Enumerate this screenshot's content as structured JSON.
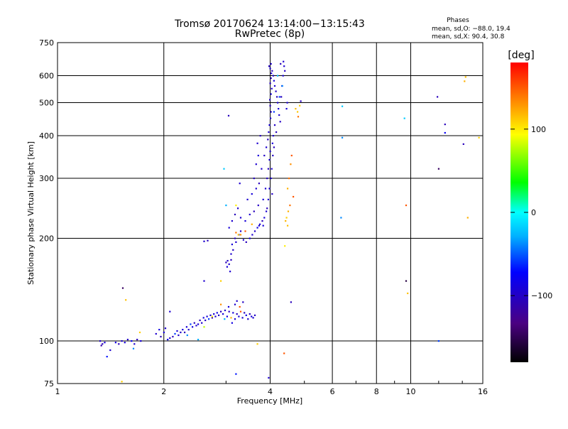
{
  "chart_data": {
    "type": "scatter",
    "title": "Tromsø 20170624 13:14:00−13:15:43",
    "subtitle": "RwPretec (8p)",
    "annotation": {
      "heading": "Phases",
      "line1": "mean, sd,O: −88.0, 19.4",
      "line2": "mean, sd,X:  90.4, 30.8"
    },
    "xlabel": "Frequency [MHz]",
    "ylabel": "Stationary phase Virtual Height [km]",
    "x_scale": "log",
    "y_scale": "log",
    "xlim": [
      1,
      16
    ],
    "ylim": [
      75,
      750
    ],
    "x_ticks": [
      {
        "value": 1,
        "label": "1"
      },
      {
        "value": 2,
        "label": "2"
      },
      {
        "value": 4,
        "label": "4"
      },
      {
        "value": 6,
        "label": "6"
      },
      {
        "value": 8,
        "label": "8"
      },
      {
        "value": 10,
        "label": "10"
      },
      {
        "value": 16,
        "label": "16"
      }
    ],
    "y_ticks": [
      {
        "value": 75,
        "label": "75"
      },
      {
        "value": 100,
        "label": "100"
      },
      {
        "value": 200,
        "label": "200"
      },
      {
        "value": 300,
        "label": "300"
      },
      {
        "value": 400,
        "label": "400"
      },
      {
        "value": 500,
        "label": "500"
      },
      {
        "value": 600,
        "label": "600"
      },
      {
        "value": 750,
        "label": "750"
      }
    ],
    "grid": true,
    "colorbar": {
      "unit": "[deg]",
      "range": [
        -180,
        180
      ],
      "ticks": [
        {
          "value": 100,
          "label": "100"
        },
        {
          "value": 0,
          "label": "0"
        },
        {
          "value": -100,
          "label": "−100"
        }
      ]
    },
    "points": [
      [
        1.32,
        100,
        -100
      ],
      [
        1.34,
        98,
        -110
      ],
      [
        1.36,
        99,
        -95
      ],
      [
        1.33,
        97,
        -120
      ],
      [
        1.41,
        94,
        -100
      ],
      [
        1.46,
        99,
        -90
      ],
      [
        1.49,
        98,
        -110
      ],
      [
        1.52,
        100,
        -100
      ],
      [
        1.55,
        99,
        -95
      ],
      [
        1.58,
        101,
        -105
      ],
      [
        1.62,
        100,
        -80
      ],
      [
        1.65,
        98,
        -100
      ],
      [
        1.68,
        101,
        -110
      ],
      [
        1.72,
        100,
        -95
      ],
      [
        1.38,
        90,
        -70
      ],
      [
        1.52,
        76,
        110
      ],
      [
        1.56,
        132,
        115
      ],
      [
        1.53,
        143,
        -150
      ],
      [
        1.71,
        106,
        110
      ],
      [
        1.64,
        95,
        -40
      ],
      [
        1.9,
        105,
        -100
      ],
      [
        1.94,
        108,
        -90
      ],
      [
        1.96,
        103,
        -110
      ],
      [
        2.0,
        106,
        -95
      ],
      [
        2.02,
        109,
        -100
      ],
      [
        2.05,
        101,
        -80
      ],
      [
        2.08,
        102,
        -105
      ],
      [
        2.12,
        103,
        -110
      ],
      [
        2.15,
        105,
        -60
      ],
      [
        2.18,
        107,
        -95
      ],
      [
        2.2,
        104,
        -100
      ],
      [
        2.23,
        106,
        -105
      ],
      [
        2.26,
        108,
        -90
      ],
      [
        2.29,
        106,
        -110
      ],
      [
        2.32,
        110,
        -95
      ],
      [
        2.35,
        108,
        -100
      ],
      [
        2.38,
        112,
        -60
      ],
      [
        2.41,
        110,
        -90
      ],
      [
        2.44,
        113,
        -105
      ],
      [
        2.47,
        111,
        -100
      ],
      [
        2.5,
        112,
        -95
      ],
      [
        2.53,
        115,
        -110
      ],
      [
        2.56,
        113,
        -100
      ],
      [
        2.59,
        117,
        -90
      ],
      [
        2.62,
        115,
        -105
      ],
      [
        2.65,
        118,
        -95
      ],
      [
        2.68,
        116,
        -60
      ],
      [
        2.71,
        119,
        -100
      ],
      [
        2.74,
        117,
        -110
      ],
      [
        2.77,
        120,
        -95
      ],
      [
        2.8,
        118,
        -100
      ],
      [
        2.83,
        121,
        -90
      ],
      [
        2.86,
        119,
        -105
      ],
      [
        2.9,
        122,
        -110
      ],
      [
        2.94,
        120,
        -95
      ],
      [
        2.98,
        123,
        -100
      ],
      [
        3.02,
        118,
        -90
      ],
      [
        3.06,
        122,
        -105
      ],
      [
        3.1,
        117,
        120
      ],
      [
        3.14,
        121,
        -95
      ],
      [
        3.18,
        116,
        -100
      ],
      [
        3.22,
        120,
        -110
      ],
      [
        3.26,
        118,
        -95
      ],
      [
        3.3,
        122,
        150
      ],
      [
        3.34,
        117,
        -100
      ],
      [
        3.38,
        121,
        -105
      ],
      [
        3.42,
        119,
        -90
      ],
      [
        3.46,
        116,
        -100
      ],
      [
        3.5,
        120,
        -110
      ],
      [
        3.54,
        118,
        -95
      ],
      [
        3.58,
        117,
        -100
      ],
      [
        3.62,
        119,
        -105
      ],
      [
        2.08,
        122,
        -100
      ],
      [
        2.6,
        110,
        80
      ],
      [
        2.33,
        104,
        -40
      ],
      [
        2.97,
        116,
        -30
      ],
      [
        3.18,
        128,
        -100
      ],
      [
        3.05,
        126,
        -95
      ],
      [
        2.9,
        128,
        130
      ],
      [
        2.74,
        118,
        100
      ],
      [
        3.22,
        131,
        -100
      ],
      [
        3.35,
        130,
        -105
      ],
      [
        3.28,
        126,
        150
      ],
      [
        3.12,
        113,
        -90
      ],
      [
        2.5,
        101,
        -30
      ],
      [
        2.6,
        196,
        -100
      ],
      [
        2.66,
        197,
        -110
      ],
      [
        2.6,
        150,
        -100
      ],
      [
        2.9,
        150,
        110
      ],
      [
        3.0,
        170,
        -110
      ],
      [
        3.03,
        172,
        -105
      ],
      [
        3.06,
        168,
        -100
      ],
      [
        3.1,
        173,
        -110
      ],
      [
        3.02,
        165,
        -95
      ],
      [
        3.08,
        160,
        -100
      ],
      [
        3.1,
        180,
        -100
      ],
      [
        3.14,
        185,
        -105
      ],
      [
        3.12,
        192,
        -95
      ],
      [
        3.2,
        195,
        -100
      ],
      [
        3.18,
        200,
        -110
      ],
      [
        3.26,
        205,
        -90
      ],
      [
        3.3,
        210,
        -105
      ],
      [
        3.36,
        198,
        -100
      ],
      [
        3.42,
        195,
        -110
      ],
      [
        3.5,
        200,
        -95
      ],
      [
        3.56,
        205,
        -100
      ],
      [
        3.62,
        210,
        -105
      ],
      [
        3.68,
        215,
        -90
      ],
      [
        3.74,
        220,
        -100
      ],
      [
        3.8,
        225,
        -110
      ],
      [
        3.85,
        230,
        -95
      ],
      [
        3.9,
        240,
        -100
      ],
      [
        3.06,
        215,
        -95
      ],
      [
        3.12,
        225,
        -100
      ],
      [
        3.18,
        235,
        -110
      ],
      [
        3.24,
        245,
        -105
      ],
      [
        3.3,
        230,
        -100
      ],
      [
        3.4,
        225,
        -95
      ],
      [
        3.5,
        235,
        -100
      ],
      [
        3.6,
        240,
        -110
      ],
      [
        3.7,
        250,
        -105
      ],
      [
        3.45,
        260,
        -100
      ],
      [
        3.55,
        270,
        -95
      ],
      [
        3.65,
        280,
        -100
      ],
      [
        3.72,
        290,
        -110
      ],
      [
        3.6,
        300,
        -105
      ],
      [
        3.65,
        330,
        -100
      ],
      [
        3.7,
        350,
        -95
      ],
      [
        3.68,
        380,
        -100
      ],
      [
        3.75,
        400,
        -110
      ],
      [
        3.78,
        320,
        -100
      ],
      [
        3.82,
        260,
        -95
      ],
      [
        3.88,
        280,
        -100
      ],
      [
        3.92,
        300,
        -105
      ],
      [
        3.95,
        320,
        -110
      ],
      [
        3.98,
        340,
        -95
      ],
      [
        4.0,
        360,
        -100
      ],
      [
        3.85,
        350,
        -105
      ],
      [
        3.9,
        370,
        -100
      ],
      [
        3.94,
        390,
        -110
      ],
      [
        3.96,
        410,
        -100
      ],
      [
        3.98,
        430,
        -95
      ],
      [
        4.01,
        450,
        -100
      ],
      [
        4.02,
        470,
        -105
      ],
      [
        4.0,
        490,
        -110
      ],
      [
        3.99,
        510,
        -100
      ],
      [
        4.02,
        530,
        -95
      ],
      [
        4.04,
        550,
        -100
      ],
      [
        4.0,
        570,
        -105
      ],
      [
        4.02,
        590,
        -110
      ],
      [
        4.03,
        610,
        -100
      ],
      [
        4.0,
        630,
        -95
      ],
      [
        4.02,
        650,
        -100
      ],
      [
        3.97,
        640,
        -105
      ],
      [
        4.05,
        620,
        -110
      ],
      [
        4.08,
        600,
        -100
      ],
      [
        4.1,
        580,
        -95
      ],
      [
        4.12,
        560,
        -100
      ],
      [
        4.15,
        540,
        -105
      ],
      [
        4.18,
        520,
        -110
      ],
      [
        4.2,
        500,
        -100
      ],
      [
        4.22,
        480,
        -95
      ],
      [
        4.24,
        460,
        -100
      ],
      [
        4.27,
        440,
        -105
      ],
      [
        4.3,
        520,
        -110
      ],
      [
        4.32,
        560,
        -100
      ],
      [
        4.35,
        600,
        -95
      ],
      [
        4.38,
        640,
        -100
      ],
      [
        4.4,
        620,
        -105
      ],
      [
        4.28,
        650,
        -110
      ],
      [
        4.36,
        660,
        -100
      ],
      [
        4.45,
        480,
        -95
      ],
      [
        4.47,
        500,
        -100
      ],
      [
        4.12,
        430,
        -105
      ],
      [
        4.16,
        410,
        -110
      ],
      [
        4.08,
        400,
        -100
      ],
      [
        4.06,
        380,
        -95
      ],
      [
        4.02,
        300,
        -100
      ],
      [
        4.05,
        270,
        -105
      ],
      [
        3.92,
        245,
        -110
      ],
      [
        3.95,
        260,
        -100
      ],
      [
        3.98,
        280,
        -95
      ],
      [
        4.04,
        320,
        -100
      ],
      [
        4.07,
        350,
        -105
      ],
      [
        4.1,
        370,
        -110
      ],
      [
        4.1,
        470,
        -60
      ],
      [
        4.25,
        520,
        -60
      ],
      [
        4.33,
        560,
        -40
      ],
      [
        4.2,
        600,
        -30
      ],
      [
        3.4,
        210,
        150
      ],
      [
        3.3,
        205,
        130
      ],
      [
        3.55,
        220,
        120
      ],
      [
        3.2,
        250,
        100
      ],
      [
        3.0,
        250,
        -30
      ],
      [
        3.28,
        290,
        -100
      ],
      [
        3.2,
        208,
        140
      ],
      [
        3.25,
        205,
        110
      ],
      [
        3.72,
        218,
        -100
      ],
      [
        3.82,
        218,
        -95
      ],
      [
        3.05,
        458,
        -110
      ],
      [
        2.96,
        320,
        -20
      ],
      [
        4.72,
        480,
        115
      ],
      [
        4.78,
        470,
        112
      ],
      [
        4.85,
        490,
        110
      ],
      [
        4.8,
        455,
        140
      ],
      [
        4.88,
        505,
        -110
      ],
      [
        4.6,
        350,
        150
      ],
      [
        4.57,
        330,
        130
      ],
      [
        4.52,
        300,
        140
      ],
      [
        4.48,
        280,
        120
      ],
      [
        4.65,
        265,
        150
      ],
      [
        4.55,
        250,
        140
      ],
      [
        4.5,
        240,
        120
      ],
      [
        4.45,
        230,
        110
      ],
      [
        4.42,
        225,
        118
      ],
      [
        4.48,
        218,
        115
      ],
      [
        4.4,
        190,
        100
      ],
      [
        4.58,
        130,
        -110
      ],
      [
        4.38,
        92,
        150
      ],
      [
        3.68,
        98,
        110
      ],
      [
        3.2,
        80,
        -70
      ],
      [
        3.96,
        78,
        -100
      ],
      [
        6.4,
        488,
        -20
      ],
      [
        6.4,
        395,
        -40
      ],
      [
        6.35,
        230,
        -40
      ],
      [
        9.6,
        450,
        -20
      ],
      [
        9.7,
        250,
        150
      ],
      [
        9.7,
        150,
        -160
      ],
      [
        9.8,
        138,
        115
      ],
      [
        11.9,
        520,
        -110
      ],
      [
        12.0,
        320,
        -150
      ],
      [
        12.5,
        432,
        -110
      ],
      [
        12.5,
        408,
        -80
      ],
      [
        14.3,
        595,
        115
      ],
      [
        14.2,
        578,
        120
      ],
      [
        14.1,
        378,
        -110
      ],
      [
        14.5,
        230,
        120
      ],
      [
        15.6,
        395,
        110
      ],
      [
        12.0,
        100,
        -60
      ]
    ]
  }
}
